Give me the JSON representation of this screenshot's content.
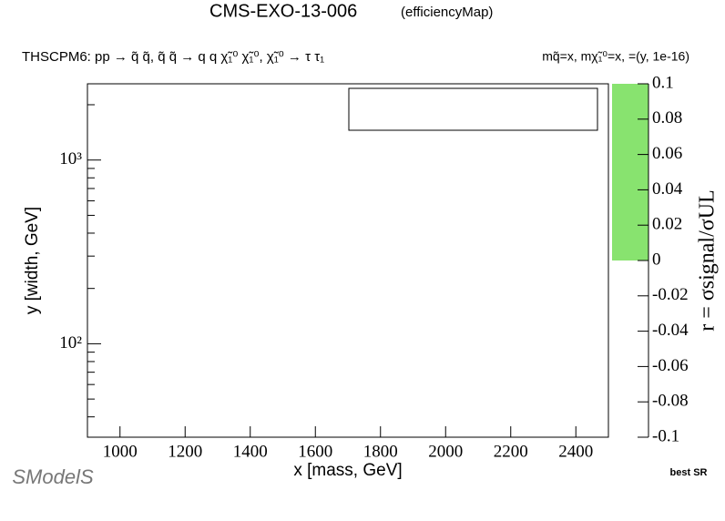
{
  "chart_data": {
    "type": "heatmap",
    "title": "CMS-EXO-13-006",
    "subtitle": "(efficiencyMap)",
    "process": "THSCPM6: pp  → q̃ q̃, q̃ q̃ → q q χ̃₁⁰ χ̃₁⁰, χ̃₁⁰ → τ τ₁",
    "masses": "mq̃=x, mχ̃₁⁰=x, =(y, 1e-16)",
    "xlabel": "x [mass, GeV]",
    "ylabel": "y [width, GeV]",
    "zlabel": "r = σsignal/σUL",
    "note": "best SR",
    "xlim": [
      900,
      2500
    ],
    "xticks": [
      1000,
      1200,
      1400,
      1600,
      1800,
      2000,
      2200,
      2400
    ],
    "ylim": [
      31,
      2600
    ],
    "ylog": true,
    "yticks": [
      {
        "value": 100,
        "label": "10²"
      },
      {
        "value": 1000,
        "label": "10³"
      }
    ],
    "yminorticks": [
      40,
      50,
      60,
      70,
      80,
      90,
      200,
      300,
      400,
      500,
      600,
      700,
      800,
      900,
      2000
    ],
    "zlim": [
      -0.1,
      0.1
    ],
    "zticks": [
      -0.1,
      -0.08,
      -0.06,
      -0.04,
      -0.02,
      0,
      0.02,
      0.04,
      0.06,
      0.08,
      0.1
    ],
    "colorbar_fill": {
      "range": [
        0,
        0.1
      ],
      "color": "#88e36f"
    }
  },
  "logo": "SModelS"
}
